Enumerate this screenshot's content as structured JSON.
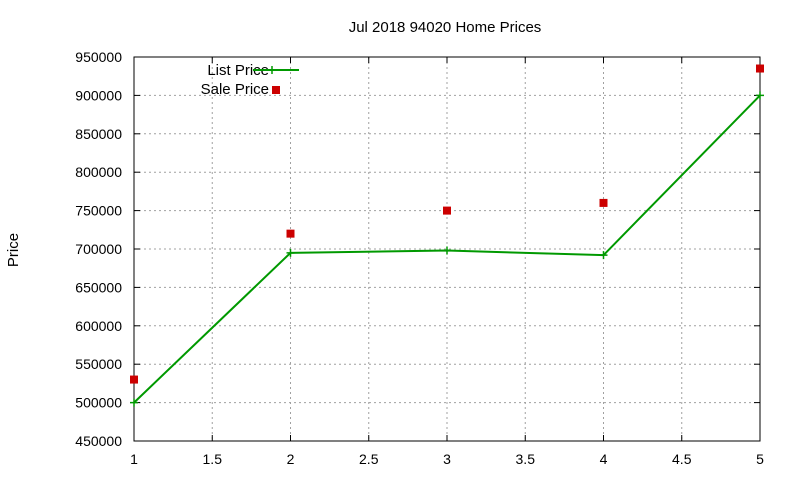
{
  "chart_data": {
    "type": "line",
    "title": "Jul 2018 94020 Home Prices",
    "xlabel": "",
    "ylabel": "Price",
    "xlim": [
      1,
      5
    ],
    "ylim": [
      450000,
      950000
    ],
    "x_ticks": [
      "1",
      "1.5",
      "2",
      "2.5",
      "3",
      "3.5",
      "4",
      "4.5",
      "5"
    ],
    "y_ticks": [
      "450000",
      "500000",
      "550000",
      "600000",
      "650000",
      "700000",
      "750000",
      "800000",
      "850000",
      "900000",
      "950000"
    ],
    "grid": true,
    "legend_position": "top-left",
    "series": [
      {
        "name": "List Price",
        "style": "line+points",
        "color": "#009900",
        "x": [
          1,
          2,
          3,
          4,
          5
        ],
        "y": [
          500000,
          695000,
          698000,
          692000,
          900000
        ]
      },
      {
        "name": "Sale Price",
        "style": "points",
        "color": "#cc0000",
        "x": [
          1,
          2,
          3,
          4,
          5
        ],
        "y": [
          530000,
          720000,
          750000,
          760000,
          935000
        ]
      }
    ]
  }
}
